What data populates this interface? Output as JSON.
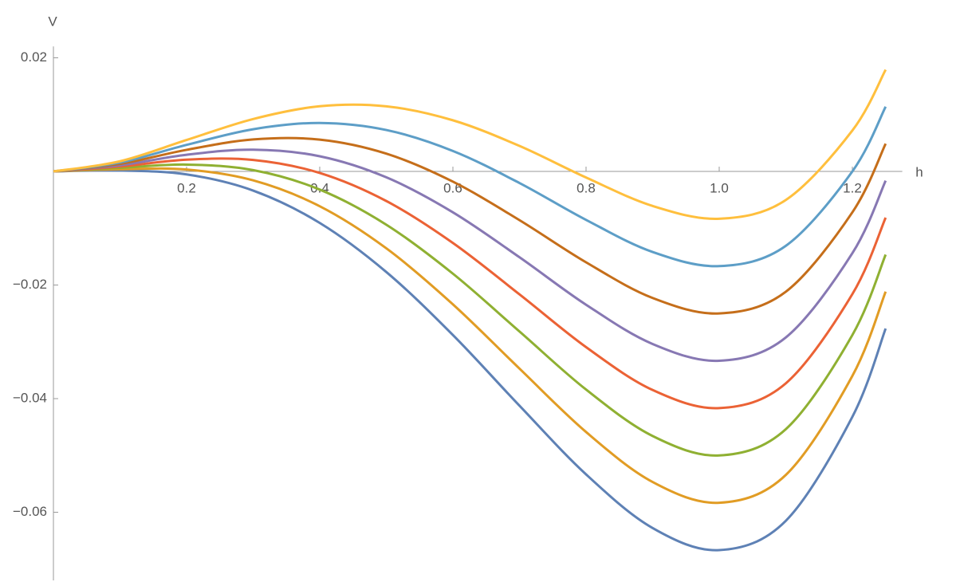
{
  "chart_data": {
    "type": "line",
    "xlabel": "h",
    "ylabel": "V",
    "x": [
      0,
      0.1,
      0.2,
      0.3,
      0.4,
      0.5,
      0.6,
      0.7,
      0.8,
      0.9,
      1.0,
      1.1,
      1.2,
      1.25
    ],
    "series": [
      {
        "color": "#5e81b5",
        "values": [
          0,
          0.00016,
          -0.00053,
          -0.003375,
          -0.00907,
          -0.01771,
          -0.0288,
          -0.04124,
          -0.05333,
          -0.06278,
          -0.06667,
          -0.06151,
          -0.0432,
          -0.02767
        ]
      },
      {
        "color": "#e19c24",
        "values": [
          0,
          0.00039,
          0.00033,
          -0.001575,
          -0.00613,
          -0.01354,
          -0.0234,
          -0.03471,
          -0.04587,
          -0.05468,
          -0.05833,
          -0.05344,
          -0.036,
          -0.02116
        ]
      },
      {
        "color": "#8fb032",
        "values": [
          0,
          0.00063,
          0.0012,
          0.000225,
          -0.0032,
          -0.00938,
          -0.018,
          -0.02818,
          -0.0384,
          -0.04658,
          -0.05,
          -0.04538,
          -0.0288,
          -0.01465
        ]
      },
      {
        "color": "#eb6235",
        "values": [
          0,
          0.00086,
          0.00207,
          0.002025,
          -0.00027,
          -0.00521,
          -0.0126,
          -0.02164,
          -0.03093,
          -0.03848,
          -0.04167,
          -0.03731,
          -0.0216,
          -0.00814
        ]
      },
      {
        "color": "#8778b3",
        "values": [
          0,
          0.00109,
          0.00293,
          0.003825,
          0.00267,
          -0.00104,
          -0.0072,
          -0.01511,
          -0.02347,
          -0.03038,
          -0.03333,
          -0.02924,
          -0.0144,
          -0.00163
        ]
      },
      {
        "color": "#c56e1a",
        "values": [
          0,
          0.00133,
          0.0038,
          0.005625,
          0.0056,
          0.00313,
          -0.0018,
          -0.00858,
          -0.016,
          -0.02228,
          -0.025,
          -0.02118,
          -0.0072,
          0.00488
        ]
      },
      {
        "color": "#5d9ec7",
        "values": [
          0,
          0.00156,
          0.00467,
          0.007425,
          0.00853,
          0.00729,
          0.0036,
          -0.00204,
          -0.00853,
          -0.01418,
          -0.01667,
          -0.01311,
          0,
          0.01139
        ]
      },
      {
        "color": "#ffbf3d",
        "values": [
          0,
          0.00179,
          0.00553,
          0.009225,
          0.01147,
          0.01146,
          0.009,
          0.00449,
          -0.00107,
          -0.00608,
          -0.00833,
          -0.00504,
          0.0072,
          0.0179
        ]
      }
    ],
    "xlim": [
      0,
      1.275
    ],
    "ylim": [
      -0.072,
      0.022
    ],
    "xticks": [
      0.2,
      0.4,
      0.6,
      0.8,
      {
        "value": 1.0,
        "label": "1.0"
      },
      1.2
    ],
    "yticks": [
      0.02,
      {
        "value": -0.02,
        "label": "−0.02"
      },
      {
        "value": -0.04,
        "label": "−0.04"
      },
      {
        "value": -0.06,
        "label": "−0.06"
      }
    ],
    "grid": false
  }
}
